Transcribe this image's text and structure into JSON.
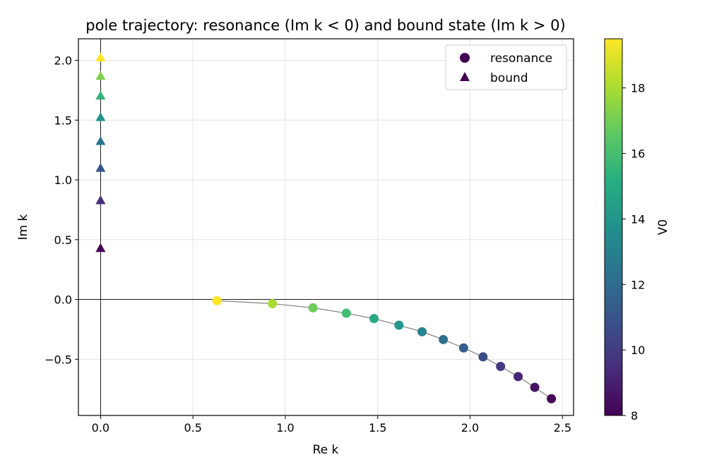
{
  "chart_data": {
    "type": "scatter",
    "title": "pole trajectory: resonance (Im k < 0) and bound state (Im k > 0)",
    "xlabel": "Re k",
    "ylabel": "Im k",
    "xlim": [
      -0.12,
      2.56
    ],
    "ylim": [
      -0.97,
      2.18
    ],
    "xticks": [
      "0.0",
      "0.5",
      "1.0",
      "1.5",
      "2.0",
      "2.5"
    ],
    "xtick_values": [
      0.0,
      0.5,
      1.0,
      1.5,
      2.0,
      2.5
    ],
    "yticks": [
      "−0.5",
      "0.0",
      "0.5",
      "1.0",
      "1.5",
      "2.0"
    ],
    "ytick_values": [
      -0.5,
      0.0,
      0.5,
      1.0,
      1.5,
      2.0
    ],
    "grid": true,
    "legend_position": "top-right",
    "legend": [
      "resonance",
      "bound"
    ],
    "colormap": "viridis",
    "colorbar": {
      "label": "V0",
      "range": [
        8,
        19.5
      ],
      "ticks": [
        "8",
        "10",
        "12",
        "14",
        "16",
        "18"
      ],
      "tick_values": [
        8,
        10,
        12,
        14,
        16,
        18
      ]
    },
    "series": [
      {
        "name": "resonance",
        "marker": "circle",
        "x": [
          2.44,
          2.35,
          2.26,
          2.165,
          2.07,
          1.965,
          1.855,
          1.74,
          1.615,
          1.48,
          1.33,
          1.15,
          0.93,
          0.63
        ],
        "y": [
          -0.83,
          -0.735,
          -0.645,
          -0.56,
          -0.48,
          -0.405,
          -0.335,
          -0.27,
          -0.215,
          -0.16,
          -0.115,
          -0.07,
          -0.035,
          -0.01
        ],
        "V0": [
          8.0,
          8.6,
          9.2,
          9.9,
          10.6,
          11.4,
          12.2,
          13.1,
          14.0,
          14.9,
          15.9,
          16.9,
          18.0,
          19.5
        ]
      },
      {
        "name": "bound",
        "marker": "triangle",
        "x": [
          0,
          0,
          0,
          0,
          0,
          0,
          0,
          0
        ],
        "y": [
          0.43,
          0.83,
          1.1,
          1.325,
          1.525,
          1.705,
          1.87,
          2.025
        ],
        "V0": [
          8.0,
          9.5,
          11.0,
          12.5,
          14.0,
          15.5,
          17.2,
          19.5
        ]
      }
    ],
    "trajectory_line": {
      "x": [
        0.63,
        0.93,
        1.15,
        1.33,
        1.48,
        1.615,
        1.74,
        1.855,
        1.965,
        2.07,
        2.165,
        2.26,
        2.35,
        2.44
      ],
      "y": [
        -0.01,
        -0.035,
        -0.07,
        -0.115,
        -0.16,
        -0.215,
        -0.27,
        -0.335,
        -0.405,
        -0.48,
        -0.56,
        -0.645,
        -0.735,
        -0.83
      ]
    }
  }
}
